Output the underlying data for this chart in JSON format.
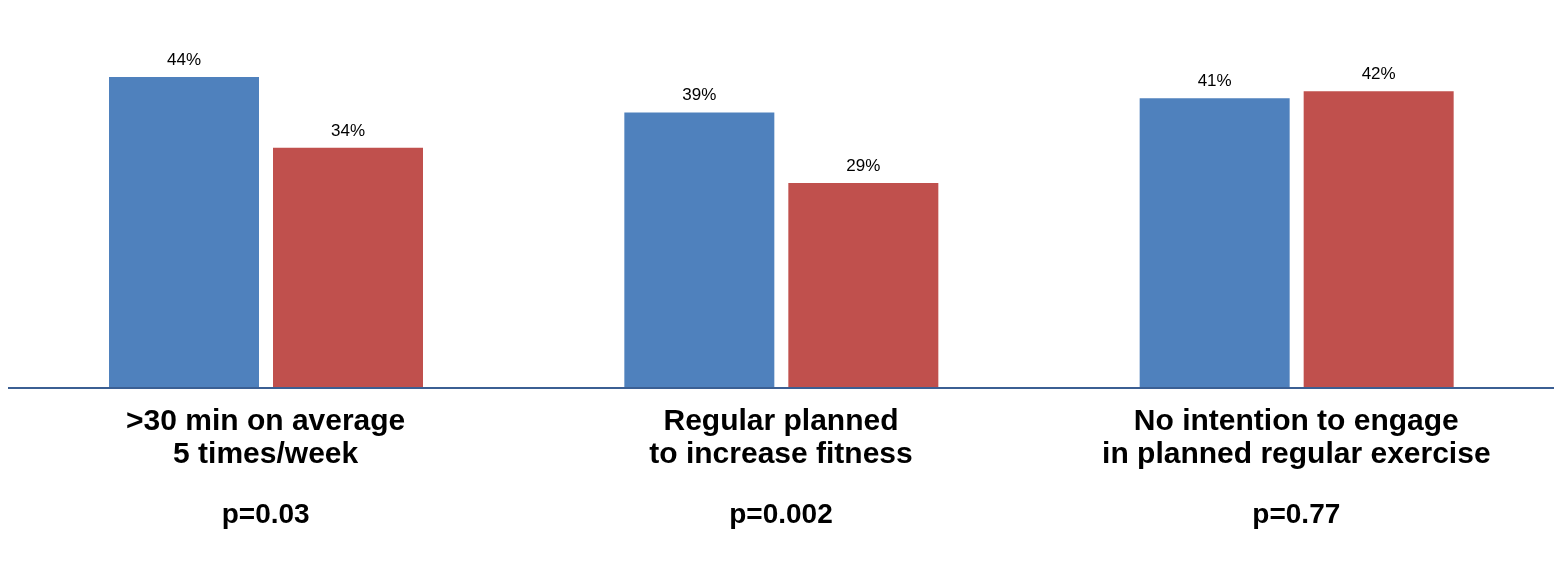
{
  "chart_data": {
    "type": "bar",
    "categories": [
      ">30 min on average\n5 times/week",
      "Regular planned\nto increase fitness",
      "No intention to engage\nin planned regular exercise"
    ],
    "series": [
      {
        "color": "#4f81bd",
        "values": [
          44,
          39,
          41
        ],
        "value_labels": [
          "44%",
          "39%",
          "41%"
        ]
      },
      {
        "color": "#c0504d",
        "values": [
          34,
          29,
          42
        ],
        "value_labels": [
          "34%",
          "29%",
          "42%"
        ]
      }
    ],
    "annotations": [
      "p=0.03",
      "p=0.002",
      "p=0.77"
    ]
  }
}
